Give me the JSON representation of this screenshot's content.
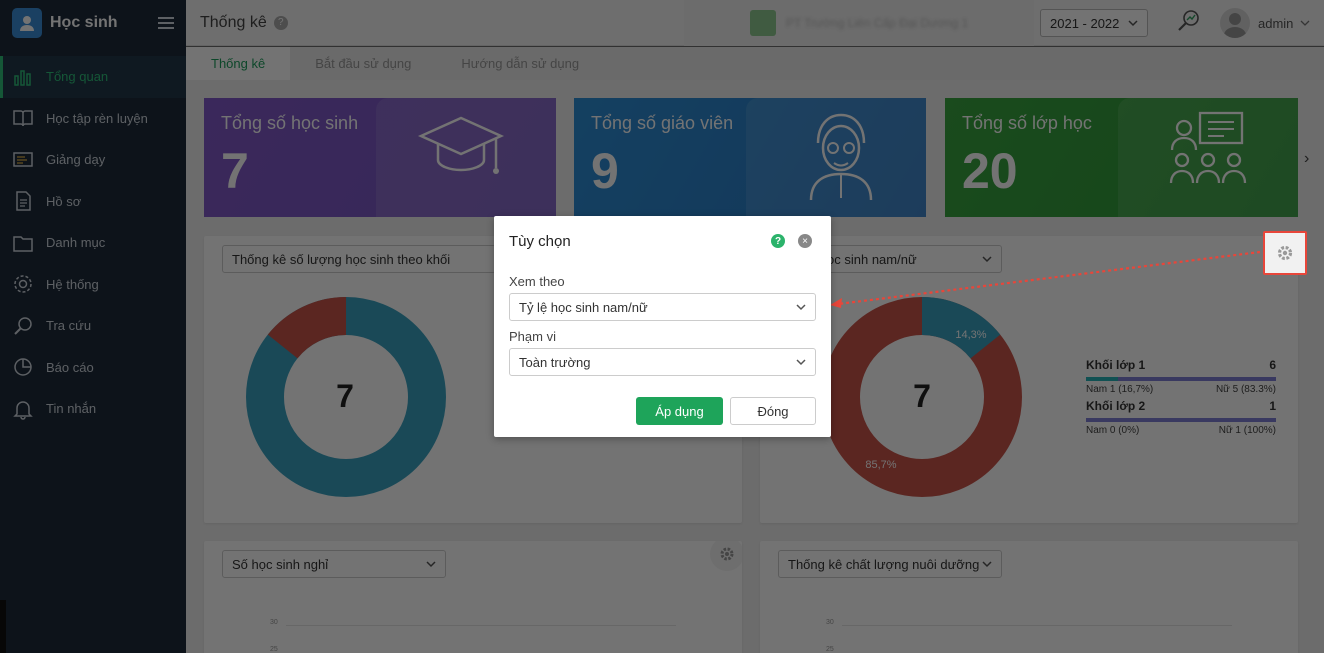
{
  "sidebar": {
    "title": "Học sinh",
    "items": [
      {
        "label": "Tổng quan",
        "icon": "chart-bars-icon",
        "active": true
      },
      {
        "label": "Học tập rèn luyện",
        "icon": "book-icon"
      },
      {
        "label": "Giảng dạy",
        "icon": "board-icon"
      },
      {
        "label": "Hồ sơ",
        "icon": "document-icon"
      },
      {
        "label": "Danh mục",
        "icon": "folder-icon"
      },
      {
        "label": "Hệ thống",
        "icon": "gear-icon"
      },
      {
        "label": "Tra cứu",
        "icon": "search-icon"
      },
      {
        "label": "Báo cáo",
        "icon": "pie-icon"
      },
      {
        "label": "Tin nhắn",
        "icon": "bell-icon"
      }
    ]
  },
  "header": {
    "title": "Thống kê",
    "help": "?",
    "school_name": "PT Trường Liên Cấp Đại Dương 1",
    "year": "2021 - 2022",
    "user": "admin"
  },
  "tabs": [
    {
      "label": "Thống kê",
      "active": true
    },
    {
      "label": "Bắt đầu sử dụng"
    },
    {
      "label": "Hướng dẫn sử dụng"
    }
  ],
  "stats": [
    {
      "label": "Tổng số học sinh",
      "value": "7",
      "color": "#7f5ac8"
    },
    {
      "label": "Tổng số giáo viên",
      "value": "9",
      "color": "#2e86d1"
    },
    {
      "label": "Tổng số lớp học",
      "value": "20",
      "color": "#36a13e"
    }
  ],
  "cards": {
    "grade_chart": {
      "select": "Thống kê số lượng học sinh theo khối",
      "total": "7",
      "segments": [
        {
          "value": 6,
          "color": "#3aa3c2"
        },
        {
          "value": 1,
          "color": "#c9544a"
        }
      ]
    },
    "gender_chart": {
      "select": "Tỷ lệ học sinh nam/nữ",
      "total": "7",
      "male_pct_label": "14,3%",
      "female_pct_label": "85,7%",
      "legend": [
        {
          "name": "Khối lớp 1",
          "count": "6",
          "male": "Nam 1 (16,7%)",
          "female": "Nữ 5 (83.3%)",
          "male_frac": 0.167
        },
        {
          "name": "Khối lớp 2",
          "count": "1",
          "male": "Nam 0 (0%)",
          "female": "Nữ 1 (100%)",
          "male_frac": 0
        }
      ]
    },
    "absence_chart": {
      "select": "Số học sinh nghỉ",
      "ticks": [
        "30",
        "25"
      ]
    },
    "nutrition_chart": {
      "select": "Thống kê chất lượng nuôi dưỡng",
      "ticks": [
        "30",
        "25"
      ]
    }
  },
  "modal": {
    "title": "Tùy chọn",
    "help": "?",
    "close": "×",
    "view_label": "Xem theo",
    "view_value": "Tỷ lệ học sinh nam/nữ",
    "scope_label": "Phạm vi",
    "scope_value": "Toàn trường",
    "apply": "Áp dụng",
    "cancel": "Đóng"
  }
}
